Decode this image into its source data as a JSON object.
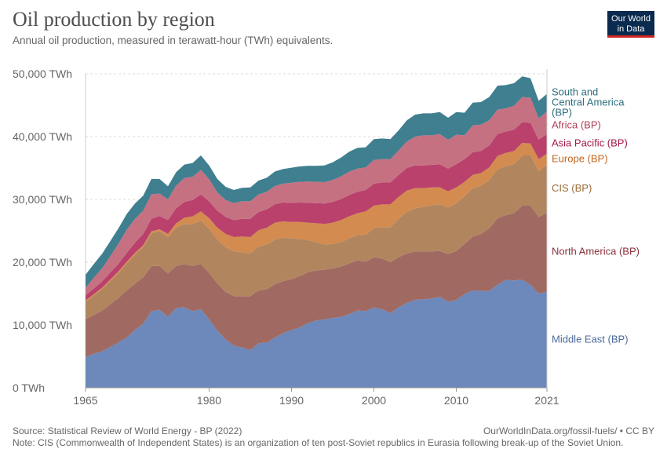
{
  "header": {
    "title": "Oil production by region",
    "subtitle": "Annual oil production, measured in terawatt-hour (TWh) equivalents.",
    "logo_line1": "Our World",
    "logo_line2": "in Data"
  },
  "footer": {
    "source": "Source: Statistical Review of World Energy - BP (2022)",
    "url": "OurWorldInData.org/fossil-fuels/ • CC BY",
    "note": "Note: CIS (Commonwealth of Independent States) is an organization of ten post-Soviet republics in Eurasia following break-up of the Soviet Union."
  },
  "chart_data": {
    "type": "area",
    "stacked": true,
    "title": "Oil production by region",
    "subtitle": "Annual oil production, measured in terawatt-hour (TWh) equivalents.",
    "x_tick_labels": [
      "1965",
      "1980",
      "1990",
      "2000",
      "2010",
      "2021"
    ],
    "y_tick_labels": [
      "0 TWh",
      "10,000 TWh",
      "20,000 TWh",
      "30,000 TWh",
      "40,000 TWh",
      "50,000 TWh"
    ],
    "xlim": [
      1965,
      2021
    ],
    "ylim": [
      0,
      50000
    ],
    "grid": true,
    "legend_placement": "right, inline labels",
    "x": [
      1965,
      1966,
      1967,
      1968,
      1969,
      1970,
      1971,
      1972,
      1973,
      1974,
      1975,
      1976,
      1977,
      1978,
      1979,
      1980,
      1981,
      1982,
      1983,
      1984,
      1985,
      1986,
      1987,
      1988,
      1989,
      1990,
      1991,
      1992,
      1993,
      1994,
      1995,
      1996,
      1997,
      1998,
      1999,
      2000,
      2001,
      2002,
      2003,
      2004,
      2005,
      2006,
      2007,
      2008,
      2009,
      2010,
      2011,
      2012,
      2013,
      2014,
      2015,
      2016,
      2017,
      2018,
      2019,
      2020,
      2021
    ],
    "series": [
      {
        "name": "Middle East (BP)",
        "label_lines": [
          "Middle East (BP)"
        ],
        "color": "#6d88bb",
        "label_color": "#4c6a9c",
        "values": [
          4900,
          5400,
          5800,
          6500,
          7200,
          8000,
          9200,
          10200,
          12200,
          12400,
          11300,
          12700,
          12800,
          12200,
          12500,
          10900,
          9100,
          7700,
          6700,
          6400,
          6000,
          7100,
          7200,
          8000,
          8700,
          9200,
          9600,
          10300,
          10700,
          10900,
          11100,
          11300,
          11700,
          12300,
          12200,
          12800,
          12500,
          11900,
          12800,
          13500,
          14000,
          14100,
          14200,
          14500,
          13700,
          14000,
          14900,
          15500,
          15400,
          15400,
          16400,
          17200,
          17100,
          17200,
          16400,
          15000,
          15300
        ]
      },
      {
        "name": "North America (BP)",
        "label_lines": [
          "North America (BP)"
        ],
        "color": "#a06a63",
        "label_color": "#883039",
        "values": [
          6000,
          6200,
          6500,
          6800,
          7100,
          7500,
          7400,
          7400,
          7200,
          7000,
          6900,
          6700,
          6900,
          7200,
          7200,
          7400,
          7500,
          7600,
          7900,
          8200,
          8600,
          8400,
          8500,
          8500,
          8300,
          8100,
          8200,
          8100,
          8000,
          7900,
          7900,
          8000,
          8100,
          8000,
          7900,
          8000,
          8100,
          8100,
          8000,
          7900,
          7700,
          7600,
          7500,
          7300,
          7600,
          7800,
          8000,
          8600,
          9100,
          10000,
          10600,
          10300,
          10700,
          11800,
          12600,
          12200,
          12600
        ]
      },
      {
        "name": "CIS (BP)",
        "label_lines": [
          "CIS (BP)"
        ],
        "color": "#b1865f",
        "label_color": "#996d39",
        "values": [
          2800,
          3100,
          3400,
          3700,
          4000,
          4300,
          4600,
          4800,
          5200,
          5500,
          5800,
          6100,
          6400,
          6700,
          6900,
          7000,
          7000,
          7100,
          7100,
          7000,
          6800,
          7000,
          7100,
          7100,
          6900,
          6500,
          5900,
          5100,
          4500,
          4000,
          3900,
          3900,
          4000,
          4000,
          4300,
          4600,
          5000,
          5600,
          6100,
          6600,
          6900,
          7100,
          7400,
          7400,
          7400,
          7600,
          7600,
          7700,
          7700,
          7700,
          7800,
          7800,
          7800,
          8000,
          8000,
          7300,
          7600
        ]
      },
      {
        "name": "Europe (BP)",
        "label_lines": [
          "Europe (BP)"
        ],
        "color": "#d48b4f",
        "label_color": "#c2651f",
        "values": [
          200,
          210,
          220,
          240,
          250,
          270,
          290,
          300,
          320,
          340,
          500,
          700,
          1000,
          1200,
          1500,
          1700,
          1900,
          2100,
          2300,
          2500,
          2600,
          2600,
          2700,
          2700,
          2600,
          2600,
          2700,
          2800,
          3000,
          3300,
          3400,
          3500,
          3500,
          3500,
          3700,
          3600,
          3600,
          3600,
          3500,
          3400,
          3200,
          3000,
          2800,
          2700,
          2600,
          2500,
          2300,
          2100,
          2000,
          2000,
          2100,
          2100,
          2100,
          2000,
          1900,
          1900,
          1800
        ]
      },
      {
        "name": "Asia Pacific (BP)",
        "label_lines": [
          "Asia Pacific (BP)"
        ],
        "color": "#b9416b",
        "label_color": "#a2194a",
        "values": [
          800,
          900,
          1000,
          1100,
          1200,
          1400,
          1600,
          1800,
          2000,
          2100,
          2200,
          2400,
          2500,
          2600,
          2700,
          2700,
          2700,
          2700,
          2700,
          2800,
          2900,
          2900,
          2900,
          2950,
          3000,
          3050,
          3100,
          3150,
          3200,
          3250,
          3300,
          3350,
          3400,
          3400,
          3400,
          3500,
          3500,
          3500,
          3500,
          3600,
          3600,
          3600,
          3600,
          3700,
          3600,
          3700,
          3600,
          3600,
          3500,
          3500,
          3500,
          3400,
          3400,
          3300,
          3300,
          3100,
          3100
        ]
      },
      {
        "name": "Africa (BP)",
        "label_lines": [
          "Africa (BP)"
        ],
        "color": "#c57182",
        "label_color": "#b13f56",
        "values": [
          1200,
          1700,
          2100,
          2600,
          3200,
          3700,
          3800,
          3700,
          3900,
          3600,
          3300,
          3600,
          3800,
          3700,
          3900,
          3500,
          2900,
          2700,
          2700,
          2800,
          2800,
          2800,
          2800,
          2900,
          3000,
          3200,
          3300,
          3400,
          3400,
          3400,
          3500,
          3600,
          3700,
          3700,
          3600,
          3800,
          3700,
          3700,
          3900,
          4200,
          4600,
          4800,
          4700,
          4800,
          4600,
          4700,
          3800,
          4300,
          4200,
          4000,
          3900,
          3700,
          3800,
          4000,
          4000,
          3400,
          3600
        ]
      },
      {
        "name": "South and Central America (BP)",
        "label_lines": [
          "South and",
          "Central America",
          "(BP)"
        ],
        "color": "#3f7f8f",
        "label_color": "#2b6d7c",
        "values": [
          2100,
          2200,
          2300,
          2400,
          2450,
          2500,
          2450,
          2400,
          2450,
          2300,
          2100,
          2150,
          2150,
          2200,
          2300,
          2200,
          2150,
          2100,
          2100,
          2150,
          2200,
          2200,
          2250,
          2300,
          2350,
          2400,
          2450,
          2500,
          2550,
          2650,
          2800,
          3000,
          3200,
          3300,
          3200,
          3300,
          3300,
          3200,
          3200,
          3400,
          3500,
          3500,
          3500,
          3500,
          3500,
          3600,
          3600,
          3600,
          3600,
          3700,
          3800,
          3700,
          3600,
          3300,
          3100,
          2800,
          2800
        ]
      }
    ]
  }
}
